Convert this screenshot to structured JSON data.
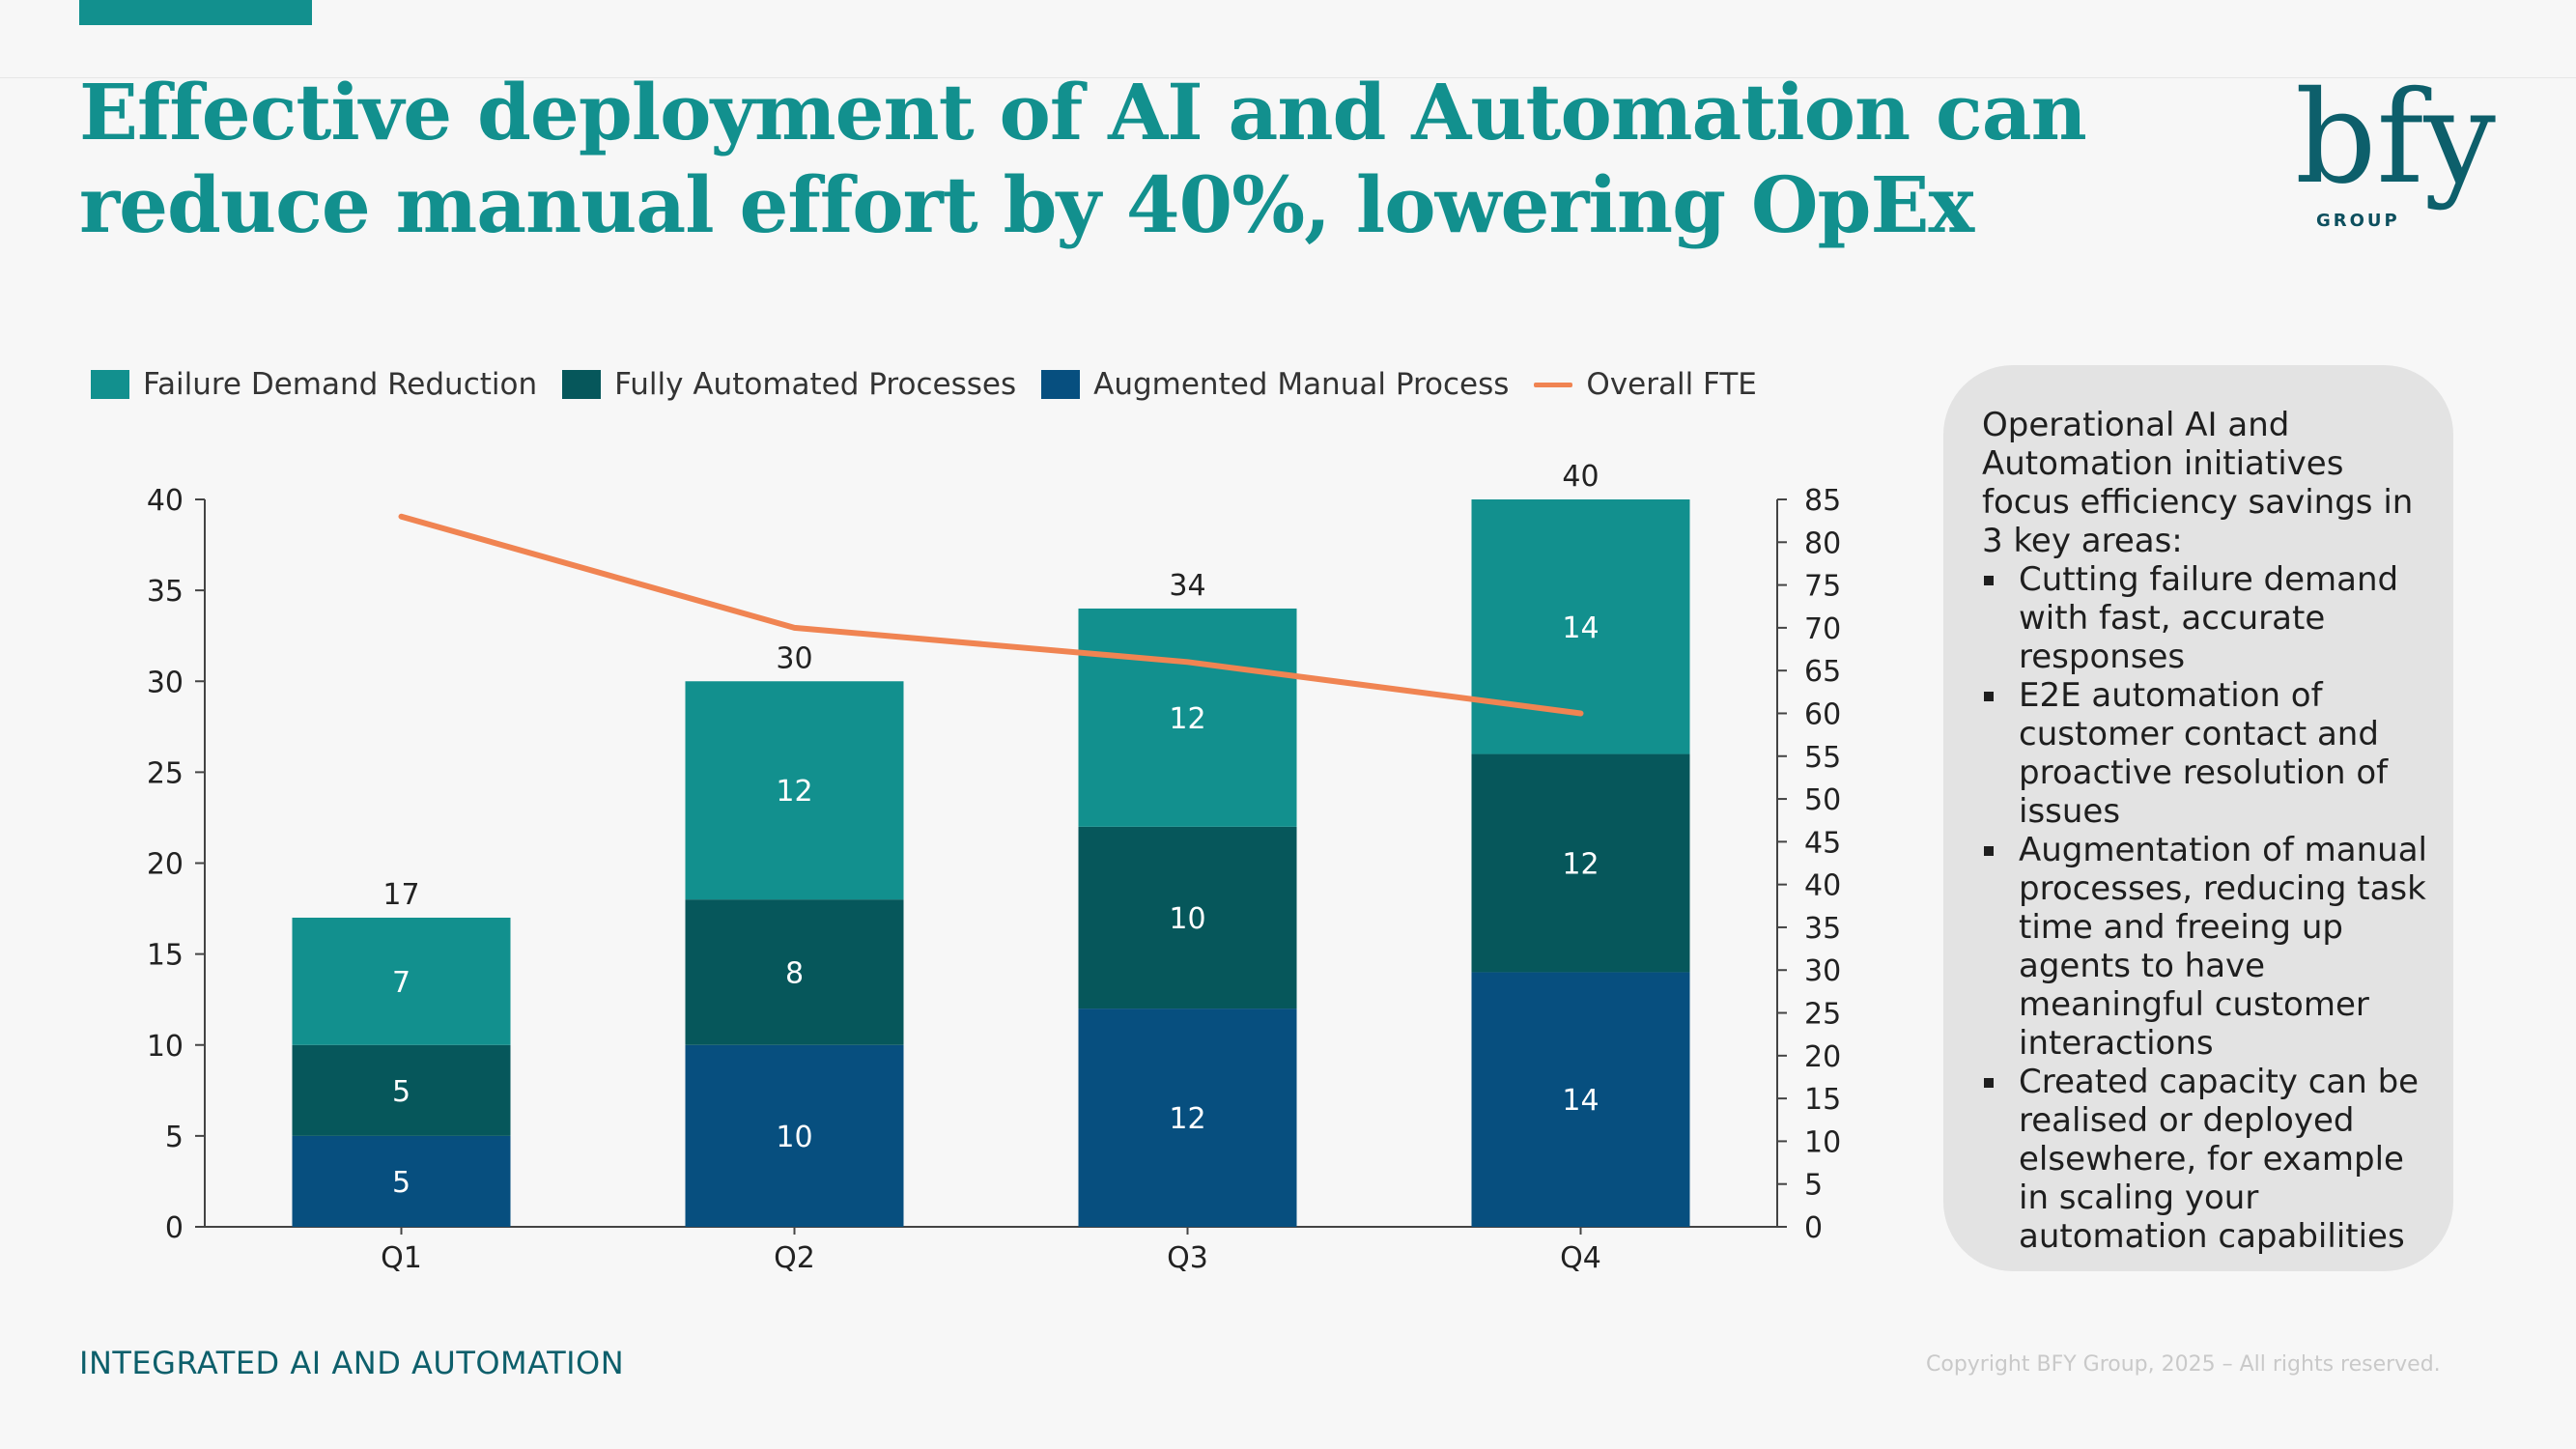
{
  "title_lines": [
    "Effective deployment of AI and Automation can",
    "reduce manual effort by 40%, lowering OpEx"
  ],
  "logo": {
    "text": "bfy",
    "group": "GROUP"
  },
  "legend": [
    {
      "label": "Failure Demand Reduction",
      "color": "#12908e",
      "kind": "bar"
    },
    {
      "label": "Fully Automated Processes",
      "color": "#06575b",
      "kind": "bar"
    },
    {
      "label": "Augmented Manual Process",
      "color": "#074f7f",
      "kind": "bar"
    },
    {
      "label": "Overall FTE",
      "color": "#f08452",
      "kind": "line"
    }
  ],
  "chart_data": {
    "type": "bar",
    "stacked": true,
    "categories": [
      "Q1",
      "Q2",
      "Q3",
      "Q4"
    ],
    "series": [
      {
        "name": "Augmented Manual Process",
        "values": [
          5,
          10,
          12,
          14
        ],
        "color": "#074f7f"
      },
      {
        "name": "Fully Automated Processes",
        "values": [
          5,
          8,
          10,
          12
        ],
        "color": "#06575b"
      },
      {
        "name": "Failure Demand Reduction",
        "values": [
          7,
          12,
          12,
          14
        ],
        "color": "#12908e"
      }
    ],
    "totals": [
      17,
      30,
      34,
      40
    ],
    "line_series": {
      "name": "Overall FTE",
      "axis": "right",
      "values": [
        83,
        70,
        66,
        60
      ],
      "color": "#f08452"
    },
    "y_left": {
      "min": 0,
      "max": 40,
      "ticks": [
        0,
        5,
        10,
        15,
        20,
        25,
        30,
        35,
        40
      ]
    },
    "y_right": {
      "min": 0,
      "max": 85,
      "ticks": [
        0,
        5,
        10,
        15,
        20,
        25,
        30,
        35,
        40,
        45,
        50,
        55,
        60,
        65,
        70,
        75,
        80,
        85
      ]
    },
    "legend_position": "top-left",
    "grid": false
  },
  "side_panel": {
    "intro": "Operational AI and Automation initiatives focus efficiency savings in 3 key areas:",
    "bullets": [
      "Cutting failure demand with fast, accurate responses",
      "E2E automation of customer contact and proactive resolution of issues",
      "Augmentation of manual processes, reducing task time and freeing up agents to have meaningful customer interactions",
      "Created capacity can be realised or deployed elsewhere, for example in scaling your automation capabilities"
    ]
  },
  "footer": {
    "section": "INTEGRATED AI AND AUTOMATION",
    "copyright": "Copyright BFY Group, 2025 – All rights reserved."
  }
}
